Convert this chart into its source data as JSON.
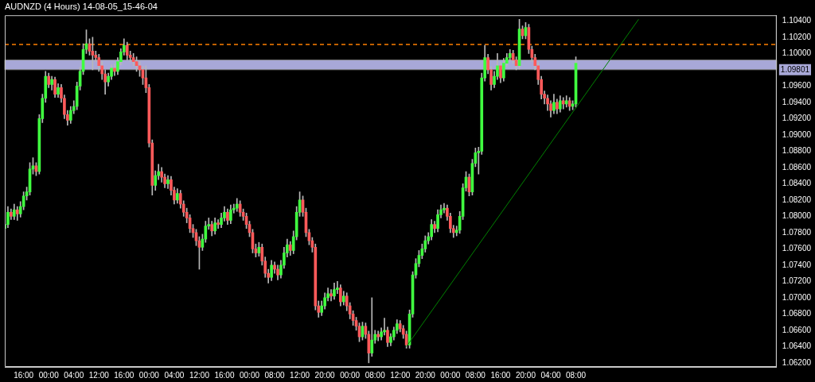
{
  "chart_data": {
    "type": "candlestick",
    "title": "AUDNZD (4 Hours) 14-08-05_15-46-04",
    "categories": [
      null,
      null,
      null,
      null,
      null,
      null,
      "16:00",
      null,
      null,
      null,
      null,
      null,
      null,
      null,
      "00:00",
      null,
      null,
      null,
      null,
      null,
      null,
      null,
      "04:00",
      null,
      null,
      null,
      null,
      null,
      null,
      null,
      "12:00",
      null,
      null,
      null,
      null,
      null,
      null,
      null,
      "16:00",
      null,
      null,
      null,
      null,
      null,
      null,
      null,
      "00:00",
      null,
      null,
      null,
      null,
      null,
      null,
      null,
      "04:00",
      null,
      null,
      null,
      null,
      null,
      null,
      null,
      "12:00",
      null,
      null,
      null,
      null,
      null,
      null,
      null,
      "16:00",
      null,
      null,
      null,
      null,
      null,
      null,
      null,
      "00:00",
      null,
      null,
      null,
      null,
      null,
      null,
      null,
      "08:00",
      null,
      null,
      null,
      null,
      null,
      null,
      null,
      "12:00",
      null,
      null,
      null,
      null,
      null,
      null,
      null,
      "20:00",
      null,
      null,
      null,
      null,
      null,
      null,
      null,
      "00:00",
      null,
      null,
      null,
      null,
      null,
      null,
      null,
      "08:00",
      null,
      null,
      null,
      null,
      null,
      null,
      null,
      "12:00",
      null,
      null,
      null,
      null,
      null,
      null,
      null,
      "20:00",
      null,
      null,
      null,
      null,
      null,
      null,
      null,
      "00:00",
      null,
      null,
      null,
      null,
      null,
      null,
      null,
      "08:00",
      null,
      null,
      null,
      null,
      null,
      null,
      null,
      "16:00",
      null,
      null,
      null,
      null,
      null,
      null,
      null,
      "20:00",
      null,
      null,
      null,
      null,
      null,
      null,
      null,
      "04:00",
      null,
      null,
      null,
      null,
      null,
      null,
      null,
      "08:00",
      null,
      null,
      null,
      null,
      null,
      null,
      null,
      null,
      null,
      null,
      null,
      null,
      null,
      null,
      null,
      null,
      null,
      null,
      null,
      null,
      null,
      null,
      null,
      null,
      null,
      null,
      null,
      null,
      null,
      null,
      null,
      null,
      null,
      null,
      null,
      null,
      null,
      null,
      null,
      null,
      null,
      null,
      null,
      null,
      null,
      null,
      null,
      null,
      null,
      null,
      null,
      null,
      null,
      null,
      null,
      null,
      null,
      null,
      null,
      null,
      null,
      null,
      null,
      null
    ],
    "ohlc": [
      [
        1.0785,
        1.0796,
        1.0778,
        1.079
      ],
      [
        1.079,
        1.0812,
        1.0786,
        1.0805
      ],
      [
        1.0805,
        1.0809,
        1.0796,
        1.08
      ],
      [
        1.08,
        1.0815,
        1.0796,
        1.0808
      ],
      [
        1.0808,
        1.0812,
        1.0795,
        1.0803
      ],
      [
        1.0803,
        1.0818,
        1.0799,
        1.0812
      ],
      [
        1.0812,
        1.083,
        1.0808,
        1.0825
      ],
      [
        1.0825,
        1.0836,
        1.082,
        1.083
      ],
      [
        1.083,
        1.0866,
        1.0826,
        1.0858
      ],
      [
        1.0858,
        1.0872,
        1.0852,
        1.0862
      ],
      [
        1.0862,
        1.0866,
        1.085,
        1.0855
      ],
      [
        1.0855,
        1.0925,
        1.0852,
        1.092
      ],
      [
        1.092,
        1.095,
        1.0915,
        1.0945
      ],
      [
        1.0945,
        1.0978,
        1.094,
        1.0972
      ],
      [
        1.0972,
        1.0976,
        1.0958,
        1.0962
      ],
      [
        1.0962,
        1.0972,
        1.0955,
        1.0968
      ],
      [
        1.0968,
        1.0971,
        1.0946,
        1.095
      ],
      [
        1.095,
        1.0963,
        1.0946,
        1.0958
      ],
      [
        1.0958,
        1.0962,
        1.094,
        1.0945
      ],
      [
        1.0945,
        1.0949,
        1.092,
        1.0925
      ],
      [
        1.0925,
        1.093,
        1.0912,
        1.0918
      ],
      [
        1.0918,
        1.0935,
        1.0914,
        1.093
      ],
      [
        1.093,
        1.0942,
        1.0926,
        1.0935
      ],
      [
        1.0935,
        1.0965,
        1.0931,
        1.096
      ],
      [
        1.096,
        1.0983,
        1.0955,
        1.0978
      ],
      [
        1.0978,
        1.1012,
        1.0974,
        1.1005
      ],
      [
        1.1005,
        1.1029,
        1.1,
        1.1012
      ],
      [
        1.1012,
        1.1018,
        1.0998,
        1.1003
      ],
      [
        1.1003,
        1.102,
        1.098,
        1.0998
      ],
      [
        1.0998,
        1.1003,
        1.099,
        1.0995
      ],
      [
        1.0995,
        1.0999,
        1.0978,
        1.0985
      ],
      [
        1.0985,
        1.099,
        1.0968,
        1.0975
      ],
      [
        1.0975,
        1.098,
        1.095,
        1.0965
      ],
      [
        1.0965,
        1.0976,
        1.096,
        1.0972
      ],
      [
        1.0972,
        1.0986,
        1.0968,
        1.0982
      ],
      [
        1.0982,
        1.0987,
        1.0973,
        1.0978
      ],
      [
        1.0978,
        1.0995,
        1.0974,
        1.099
      ],
      [
        1.099,
        1.1006,
        1.0986,
        1.1002
      ],
      [
        1.1002,
        1.1018,
        1.0998,
        1.101
      ],
      [
        1.101,
        1.1014,
        1.0992,
        1.0998
      ],
      [
        1.0998,
        1.1003,
        1.099,
        1.0995
      ],
      [
        1.0995,
        1.1,
        1.0985,
        1.099
      ],
      [
        1.099,
        1.0996,
        1.0978,
        1.0985
      ],
      [
        1.0985,
        1.099,
        1.0972,
        1.098
      ],
      [
        1.098,
        1.0984,
        1.0962,
        1.097
      ],
      [
        1.097,
        1.0985,
        1.0952,
        1.0958
      ],
      [
        1.0958,
        1.0962,
        1.0885,
        1.089
      ],
      [
        1.089,
        1.0894,
        1.0826,
        1.0838
      ],
      [
        1.0838,
        1.0856,
        1.0832,
        1.085
      ],
      [
        1.085,
        1.0864,
        1.0845,
        1.0855
      ],
      [
        1.0855,
        1.086,
        1.0842,
        1.0848
      ],
      [
        1.0848,
        1.0852,
        1.0835,
        1.084
      ],
      [
        1.084,
        1.085,
        1.0834,
        1.0845
      ],
      [
        1.0845,
        1.0849,
        1.0826,
        1.0832
      ],
      [
        1.0832,
        1.0836,
        1.0815,
        1.082
      ],
      [
        1.082,
        1.0834,
        1.0816,
        1.0828
      ],
      [
        1.0828,
        1.0832,
        1.081,
        1.0815
      ],
      [
        1.0815,
        1.0819,
        1.08,
        1.0805
      ],
      [
        1.0805,
        1.081,
        1.0792,
        1.0798
      ],
      [
        1.0798,
        1.0802,
        1.078,
        1.0785
      ],
      [
        1.0785,
        1.079,
        1.0774,
        1.078
      ],
      [
        1.078,
        1.0784,
        1.0764,
        1.077
      ],
      [
        1.077,
        1.0775,
        1.0735,
        1.0762
      ],
      [
        1.0762,
        1.0778,
        1.0758,
        1.0772
      ],
      [
        1.0772,
        1.0794,
        1.0768,
        1.0788
      ],
      [
        1.0788,
        1.0798,
        1.0784,
        1.079
      ],
      [
        1.079,
        1.0794,
        1.0776,
        1.0782
      ],
      [
        1.0782,
        1.0798,
        1.0778,
        1.0792
      ],
      [
        1.0792,
        1.0796,
        1.0785,
        1.079
      ],
      [
        1.079,
        1.0804,
        1.0786,
        1.0798
      ],
      [
        1.0798,
        1.0812,
        1.0794,
        1.0805
      ],
      [
        1.0805,
        1.0809,
        1.079,
        1.0795
      ],
      [
        1.0795,
        1.0814,
        1.0791,
        1.0808
      ],
      [
        1.0808,
        1.0815,
        1.0804,
        1.081
      ],
      [
        1.081,
        1.0822,
        1.0806,
        1.0815
      ],
      [
        1.0815,
        1.0819,
        1.08,
        1.0805
      ],
      [
        1.0805,
        1.0809,
        1.0795,
        1.08
      ],
      [
        1.08,
        1.0804,
        1.0785,
        1.079
      ],
      [
        1.079,
        1.0794,
        1.0775,
        1.078
      ],
      [
        1.078,
        1.0784,
        1.0755,
        1.076
      ],
      [
        1.076,
        1.0766,
        1.075,
        1.0755
      ],
      [
        1.0755,
        1.0768,
        1.0751,
        1.0762
      ],
      [
        1.0762,
        1.0766,
        1.074,
        1.0745
      ],
      [
        1.0745,
        1.075,
        1.0725,
        1.073
      ],
      [
        1.073,
        1.0735,
        1.0718,
        1.0725
      ],
      [
        1.0725,
        1.0746,
        1.0721,
        1.074
      ],
      [
        1.074,
        1.0744,
        1.073,
        1.0735
      ],
      [
        1.0735,
        1.074,
        1.0722,
        1.0728
      ],
      [
        1.0728,
        1.0746,
        1.0724,
        1.074
      ],
      [
        1.074,
        1.0762,
        1.0736,
        1.0755
      ],
      [
        1.0755,
        1.0772,
        1.075,
        1.0765
      ],
      [
        1.0765,
        1.0769,
        1.0752,
        1.0758
      ],
      [
        1.0758,
        1.0782,
        1.0754,
        1.0775
      ],
      [
        1.0775,
        1.0812,
        1.0771,
        1.0805
      ],
      [
        1.0805,
        1.083,
        1.08,
        1.082
      ],
      [
        1.082,
        1.0825,
        1.08,
        1.0805
      ],
      [
        1.0805,
        1.081,
        1.0775,
        1.078
      ],
      [
        1.078,
        1.0784,
        1.0765,
        1.077
      ],
      [
        1.077,
        1.0774,
        1.0756,
        1.0762
      ],
      [
        1.0762,
        1.0766,
        1.0685,
        1.069
      ],
      [
        1.069,
        1.0696,
        1.0676,
        1.0682
      ],
      [
        1.0682,
        1.0696,
        1.0678,
        1.069
      ],
      [
        1.069,
        1.0706,
        1.0686,
        1.07
      ],
      [
        1.07,
        1.0712,
        1.0696,
        1.0705
      ],
      [
        1.0705,
        1.071,
        1.0696,
        1.0702
      ],
      [
        1.0702,
        1.0718,
        1.0698,
        1.071
      ],
      [
        1.071,
        1.072,
        1.0705,
        1.0712
      ],
      [
        1.0712,
        1.0716,
        1.069,
        1.0695
      ],
      [
        1.0695,
        1.0708,
        1.0691,
        1.0702
      ],
      [
        1.0702,
        1.0706,
        1.0684,
        1.069
      ],
      [
        1.069,
        1.0694,
        1.0674,
        1.068
      ],
      [
        1.068,
        1.0684,
        1.0666,
        1.0672
      ],
      [
        1.0672,
        1.0676,
        1.066,
        1.0665
      ],
      [
        1.0665,
        1.0669,
        1.0646,
        1.0652
      ],
      [
        1.0652,
        1.067,
        1.0648,
        1.0665
      ],
      [
        1.0665,
        1.0669,
        1.065,
        1.0655
      ],
      [
        1.0655,
        1.0659,
        1.062,
        1.0632
      ],
      [
        1.0632,
        1.07,
        1.0628,
        1.0648
      ],
      [
        1.0648,
        1.066,
        1.0644,
        1.0655
      ],
      [
        1.0655,
        1.0659,
        1.0647,
        1.0652
      ],
      [
        1.0652,
        1.0663,
        1.0648,
        1.0658
      ],
      [
        1.0658,
        1.0675,
        1.0654,
        1.066
      ],
      [
        1.066,
        1.0664,
        1.064,
        1.0645
      ],
      [
        1.0645,
        1.0656,
        1.0641,
        1.0652
      ],
      [
        1.0652,
        1.0664,
        1.0648,
        1.066
      ],
      [
        1.066,
        1.0673,
        1.0656,
        1.0668
      ],
      [
        1.0668,
        1.0672,
        1.0658,
        1.0662
      ],
      [
        1.0662,
        1.0666,
        1.065,
        1.0655
      ],
      [
        1.0655,
        1.0659,
        1.0638,
        1.0642
      ],
      [
        1.0642,
        1.0685,
        1.0638,
        1.068
      ],
      [
        1.068,
        1.0732,
        1.0676,
        1.0728
      ],
      [
        1.0728,
        1.0748,
        1.0724,
        1.0742
      ],
      [
        1.0742,
        1.0758,
        1.0738,
        1.0752
      ],
      [
        1.0752,
        1.0766,
        1.0748,
        1.076
      ],
      [
        1.076,
        1.0776,
        1.0756,
        1.077
      ],
      [
        1.077,
        1.078,
        1.0766,
        1.0775
      ],
      [
        1.0775,
        1.0796,
        1.0771,
        1.079
      ],
      [
        1.079,
        1.0794,
        1.078,
        1.0785
      ],
      [
        1.0785,
        1.0808,
        1.0781,
        1.0802
      ],
      [
        1.0802,
        1.0814,
        1.0798,
        1.0808
      ],
      [
        1.0808,
        1.0816,
        1.0804,
        1.081
      ],
      [
        1.081,
        1.0814,
        1.0795,
        1.08
      ],
      [
        1.08,
        1.0804,
        1.078,
        1.0785
      ],
      [
        1.0785,
        1.0789,
        1.0774,
        1.078
      ],
      [
        1.078,
        1.0788,
        1.0776,
        1.0783
      ],
      [
        1.0783,
        1.0806,
        1.0779,
        1.08
      ],
      [
        1.08,
        1.084,
        1.0796,
        1.0835
      ],
      [
        1.0835,
        1.0855,
        1.0831,
        1.0848
      ],
      [
        1.0848,
        1.0852,
        1.0825,
        1.083
      ],
      [
        1.083,
        1.087,
        1.0826,
        1.0865
      ],
      [
        1.0865,
        1.0884,
        1.0861,
        1.0878
      ],
      [
        1.0878,
        1.0885,
        1.0852,
        1.088
      ],
      [
        1.088,
        1.0976,
        1.0876,
        1.097
      ],
      [
        1.097,
        1.101,
        1.0966,
        1.0995
      ],
      [
        1.0995,
        1.0999,
        1.0975,
        1.098
      ],
      [
        1.098,
        1.0984,
        1.0955,
        1.0962
      ],
      [
        1.0962,
        1.0978,
        1.0958,
        1.0972
      ],
      [
        1.0972,
        1.1,
        1.0968,
        1.0985
      ],
      [
        1.0985,
        1.0989,
        1.0964,
        1.097
      ],
      [
        1.097,
        1.0994,
        1.0966,
        1.0988
      ],
      [
        1.0988,
        1.1,
        1.0984,
        1.0995
      ],
      [
        1.0995,
        1.1005,
        1.0991,
        1.1
      ],
      [
        1.1,
        1.1004,
        1.0988,
        1.0992
      ],
      [
        1.0992,
        1.0996,
        1.098,
        1.0985
      ],
      [
        1.0985,
        1.1042,
        1.0981,
        1.103
      ],
      [
        1.103,
        1.1034,
        1.1018,
        1.1022
      ],
      [
        1.1022,
        1.1038,
        1.1018,
        1.1032
      ],
      [
        1.1032,
        1.1036,
        1.1,
        1.1005
      ],
      [
        1.1005,
        1.1009,
        1.099,
        1.0995
      ],
      [
        1.0995,
        1.0999,
        1.098,
        1.0985
      ],
      [
        1.0985,
        1.0989,
        1.0962,
        1.0968
      ],
      [
        1.0968,
        1.0972,
        1.0944,
        1.095
      ],
      [
        1.095,
        1.0954,
        1.0938,
        1.0945
      ],
      [
        1.0945,
        1.0949,
        1.093,
        1.0938
      ],
      [
        1.0938,
        1.0942,
        1.0922,
        1.093
      ],
      [
        1.093,
        1.095,
        1.0926,
        1.094
      ],
      [
        1.094,
        1.0944,
        1.0926,
        1.0932
      ],
      [
        1.0932,
        1.0948,
        1.0928,
        1.0942
      ],
      [
        1.0942,
        1.0946,
        1.0932,
        1.0938
      ],
      [
        1.0938,
        1.0948,
        1.0934,
        1.0942
      ],
      [
        1.0942,
        1.0946,
        1.093,
        1.0935
      ],
      [
        1.0935,
        1.0942,
        1.0931,
        1.0938
      ],
      [
        1.0938,
        1.0996,
        1.0934,
        1.0988
      ],
      null,
      null,
      null,
      null,
      null,
      null,
      null,
      null,
      null,
      null,
      null,
      null,
      null,
      null,
      null,
      null,
      null,
      null,
      null,
      null,
      null,
      null,
      null,
      null,
      null,
      null,
      null,
      null,
      null,
      null,
      null,
      null,
      null,
      null,
      null,
      null,
      null,
      null,
      null,
      null,
      null,
      null,
      null,
      null,
      null,
      null,
      null,
      null,
      null,
      null,
      null,
      null,
      null,
      null,
      null,
      null,
      null,
      null,
      null,
      null,
      null,
      null,
      null,
      null
    ],
    "series": [
      {
        "type": "line",
        "color": "#008000",
        "values": [
          null,
          null,
          null,
          null,
          null,
          null,
          null,
          null,
          null,
          null,
          null,
          null,
          null,
          null,
          null,
          null,
          null,
          null,
          null,
          null,
          null,
          null,
          null,
          null,
          null,
          null,
          null,
          null,
          null,
          null,
          null,
          null,
          null,
          null,
          null,
          null,
          null,
          null,
          null,
          null,
          null,
          null,
          null,
          null,
          null,
          null,
          null,
          null,
          null,
          null,
          null,
          null,
          null,
          null,
          null,
          null,
          null,
          null,
          null,
          null,
          null,
          null,
          null,
          null,
          null,
          null,
          null,
          null,
          null,
          null,
          null,
          null,
          null,
          null,
          null,
          null,
          null,
          null,
          null,
          null,
          null,
          null,
          null,
          null,
          null,
          null,
          null,
          null,
          null,
          null,
          null,
          null,
          null,
          null,
          null,
          null,
          null,
          null,
          null,
          null,
          null,
          null,
          null,
          null,
          null,
          null,
          null,
          null,
          null,
          null,
          null,
          null,
          null,
          null,
          null,
          null,
          null,
          null,
          null,
          null,
          null,
          null,
          null,
          null,
          null,
          null,
          null,
          null,
          1.064,
          null,
          null,
          null,
          null,
          null,
          null,
          null,
          null,
          null,
          null,
          null,
          null,
          null,
          null,
          null,
          null,
          null,
          null,
          null,
          null,
          null,
          null,
          null,
          null,
          null,
          null,
          null,
          null,
          null,
          null,
          null,
          null,
          null,
          null,
          null,
          null,
          null,
          null,
          null,
          null,
          null,
          null,
          null,
          null,
          null,
          null,
          null,
          null,
          null,
          null,
          null,
          null,
          null,
          null,
          null,
          null,
          null,
          null,
          null,
          null,
          null,
          null,
          null,
          null,
          null,
          null,
          null,
          null,
          null,
          null,
          null,
          null,
          null,
          1.1042,
          null,
          null,
          null,
          null,
          null,
          null,
          null,
          null,
          null,
          null,
          null,
          null,
          null,
          null,
          null,
          null,
          null,
          null,
          null,
          null,
          null,
          null,
          null,
          null,
          null,
          null,
          null,
          null,
          null,
          null,
          null,
          null,
          null,
          null,
          null,
          null,
          null,
          null,
          null,
          null,
          null,
          null,
          null,
          null
        ]
      }
    ],
    "ylim": [
      1.0615,
      1.1047
    ],
    "yticks": [
      {
        "value": 1.062,
        "label": "1.06200"
      },
      {
        "value": 1.064,
        "label": "1.06400"
      },
      {
        "value": 1.066,
        "label": "1.06600"
      },
      {
        "value": 1.068,
        "label": "1.06800"
      },
      {
        "value": 1.07,
        "label": "1.07000"
      },
      {
        "value": 1.072,
        "label": "1.07200"
      },
      {
        "value": 1.074,
        "label": "1.07400"
      },
      {
        "value": 1.076,
        "label": "1.07600"
      },
      {
        "value": 1.078,
        "label": "1.07800"
      },
      {
        "value": 1.08,
        "label": "1.08000"
      },
      {
        "value": 1.082,
        "label": "1.08200"
      },
      {
        "value": 1.084,
        "label": "1.08400"
      },
      {
        "value": 1.086,
        "label": "1.08600"
      },
      {
        "value": 1.088,
        "label": "1.08800"
      },
      {
        "value": 1.09,
        "label": "1.09000"
      },
      {
        "value": 1.092,
        "label": "1.09200"
      },
      {
        "value": 1.094,
        "label": "1.09400"
      },
      {
        "value": 1.096,
        "label": "1.09600"
      },
      {
        "value": 1.1,
        "label": "1.10000"
      },
      {
        "value": 1.102,
        "label": "1.10200"
      },
      {
        "value": 1.104,
        "label": "1.10400"
      }
    ],
    "ref_lines": [
      {
        "axis": "y",
        "value": 1.1011,
        "color": "#ff8000",
        "line_style": "dashed"
      }
    ],
    "bands": [
      {
        "axis": "y",
        "from": 1.09801,
        "to": 1.0992,
        "color": "#a8a8d8",
        "label": "1.09801"
      }
    ]
  }
}
